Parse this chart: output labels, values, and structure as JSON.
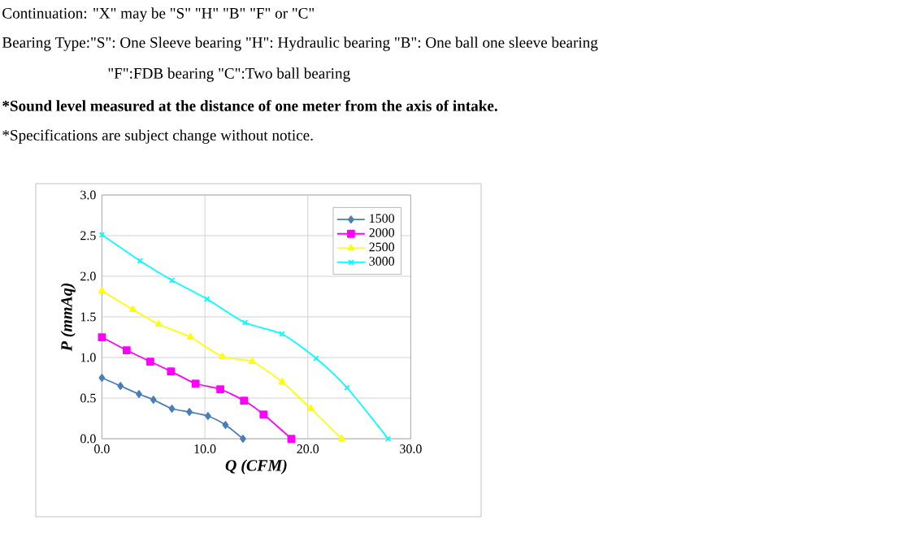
{
  "chart_data": {
    "type": "line",
    "xlabel": "Q (CFM)",
    "ylabel": "P (mmAq)",
    "annotations": [
      "Continuation: \"X\" may  be  \"S\"  \"H\"  \"B\"  \"F\"  or  \"C\"",
      "Bearing Type:\"S\": One Sleeve bearing      \"H\": Hydraulic   bearing         \"B\": One ball one sleeve bearing",
      "\"F\":FDB    bearing             \"C\":Two ball bearing",
      "*Sound level measured at the distance of one meter from the axis of intake.",
      "*Specifications are subject change without notice."
    ],
    "series": [
      {
        "name": "1500",
        "color": "#4a7ebb",
        "marker": "diamond",
        "x": [
          0,
          1.8,
          3.6,
          5.0,
          6.8,
          8.5,
          10.3,
          12.0,
          13.7
        ],
        "values": [
          0.75,
          0.65,
          0.55,
          0.48,
          0.37,
          0.33,
          0.28,
          0.17,
          0
        ]
      },
      {
        "name": "2000",
        "color": "#ff00ff",
        "marker": "square",
        "x": [
          0,
          2.4,
          4.7,
          6.7,
          9.1,
          11.5,
          13.8,
          15.7,
          18.4
        ],
        "values": [
          1.25,
          1.09,
          0.95,
          0.83,
          0.68,
          0.61,
          0.47,
          0.3,
          0
        ]
      },
      {
        "name": "2500",
        "color": "#ffff00",
        "marker": "triangle",
        "x": [
          0,
          3.0,
          5.5,
          8.6,
          11.7,
          14.6,
          17.5,
          20.3,
          23.3
        ],
        "values": [
          1.82,
          1.59,
          1.41,
          1.25,
          1.01,
          0.95,
          0.7,
          0.37,
          0
        ]
      },
      {
        "name": "3000",
        "color": "#00ffff",
        "marker": "cross",
        "x": [
          0,
          3.7,
          6.8,
          10.2,
          13.9,
          17.5,
          20.8,
          23.8,
          27.8
        ],
        "values": [
          2.51,
          2.19,
          1.95,
          1.72,
          1.43,
          1.29,
          0.99,
          0.63,
          0
        ]
      }
    ],
    "xlim": [
      0,
      30
    ],
    "ylim": [
      0,
      3
    ],
    "xticks": [
      {
        "value": 0,
        "label": "0.0"
      },
      {
        "value": 10,
        "label": "10.0"
      },
      {
        "value": 20,
        "label": "20.0"
      },
      {
        "value": 30,
        "label": "30.0"
      }
    ],
    "yticks": [
      {
        "value": 0,
        "label": "0.0"
      },
      {
        "value": 0.5,
        "label": "0.5"
      },
      {
        "value": 1,
        "label": "1.0"
      },
      {
        "value": 1.5,
        "label": "1.5"
      },
      {
        "value": 2,
        "label": "2.0"
      },
      {
        "value": 2.5,
        "label": "2.5"
      },
      {
        "value": 3,
        "label": "3.0"
      }
    ],
    "grid": true,
    "legend": "top right"
  }
}
